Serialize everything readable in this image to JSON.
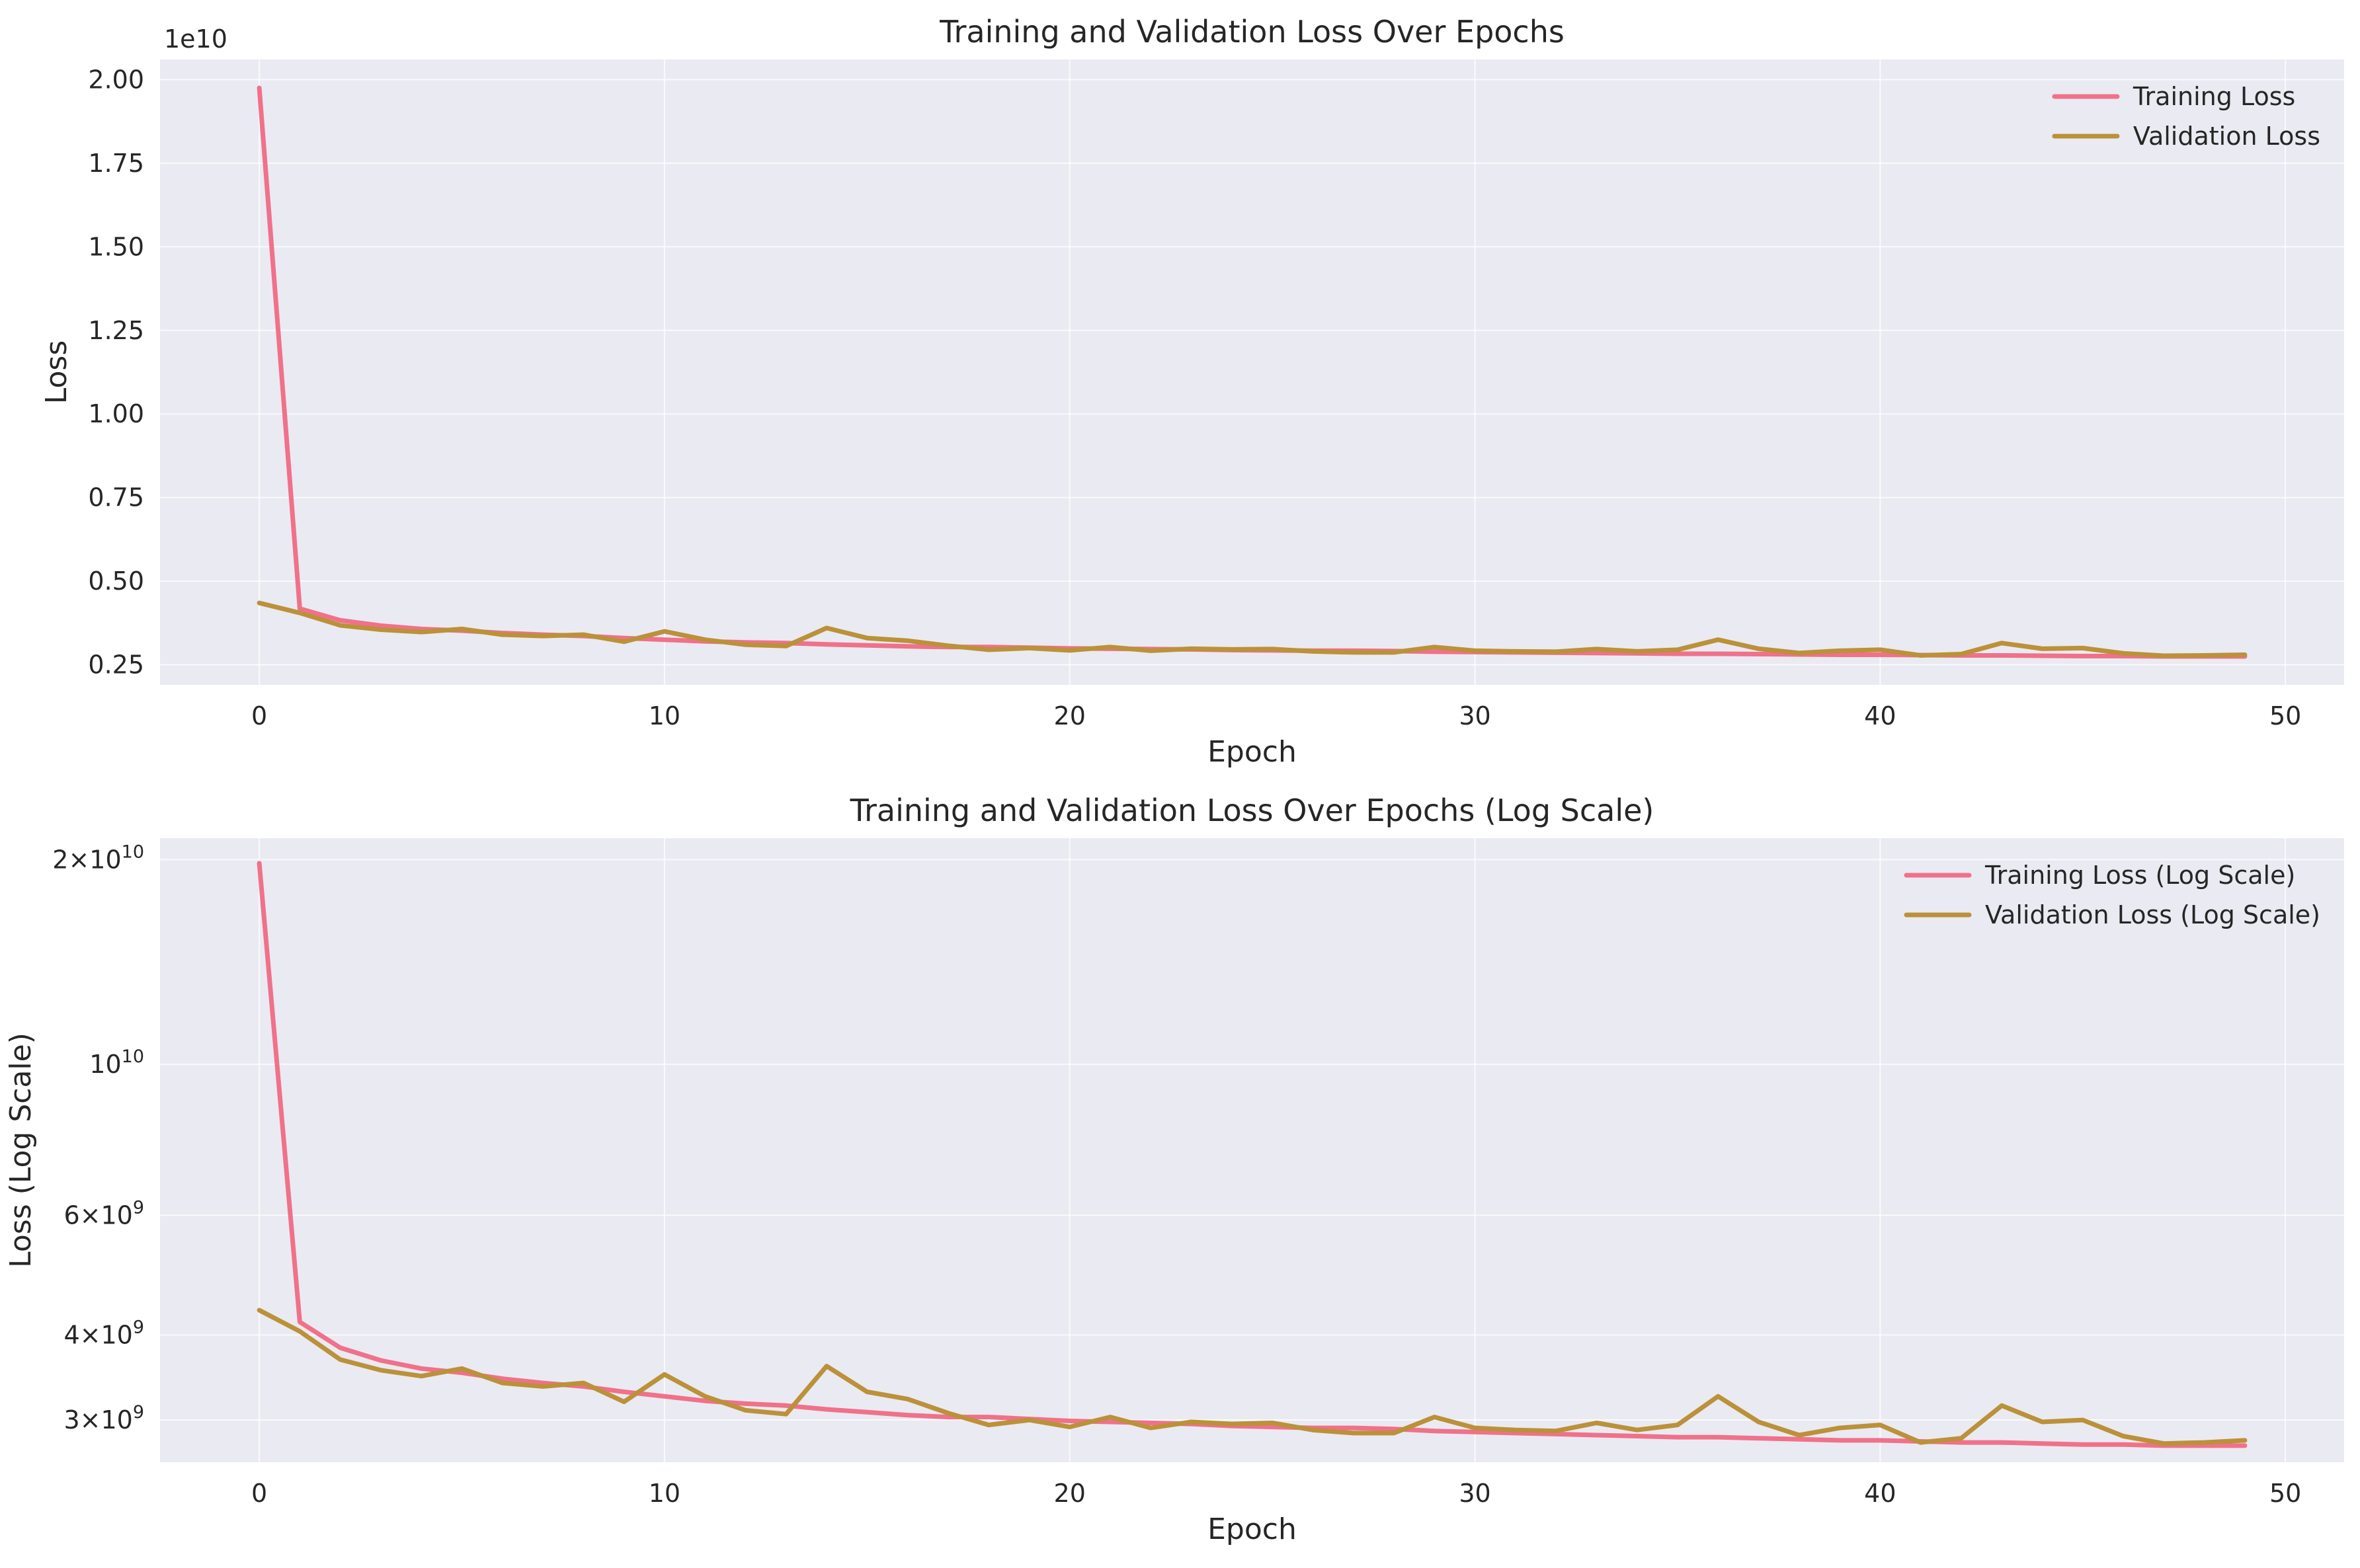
{
  "chart_data": [
    {
      "type": "line",
      "title": "Training and Validation Loss Over Epochs",
      "xlabel": "Epoch",
      "ylabel": "Loss",
      "yscale": "linear",
      "offset_text": "1e10",
      "xlim": [
        -2.45,
        51.45
      ],
      "ylim": [
        0.19,
        2.06
      ],
      "x_ticks": [
        0,
        10,
        20,
        30,
        40,
        50
      ],
      "x_tick_labels": [
        "0",
        "10",
        "20",
        "30",
        "40",
        "50"
      ],
      "y_ticks": [
        0.25,
        0.5,
        0.75,
        1.0,
        1.25,
        1.5,
        1.75,
        2.0
      ],
      "y_tick_labels": [
        "0.25",
        "0.50",
        "0.75",
        "1.00",
        "1.25",
        "1.50",
        "1.75",
        "2.00"
      ],
      "grid": true,
      "legend_position": "top-right",
      "x": [
        0,
        1,
        2,
        3,
        4,
        5,
        6,
        7,
        8,
        9,
        10,
        11,
        12,
        13,
        14,
        15,
        16,
        17,
        18,
        19,
        20,
        21,
        22,
        23,
        24,
        25,
        26,
        27,
        28,
        29,
        30,
        31,
        32,
        33,
        34,
        35,
        36,
        37,
        38,
        39,
        40,
        41,
        42,
        43,
        44,
        45,
        46,
        47,
        48,
        49
      ],
      "series": [
        {
          "name": "Training Loss",
          "color": "#f0718a",
          "values": [
            1.975,
            0.418,
            0.383,
            0.367,
            0.357,
            0.352,
            0.345,
            0.34,
            0.336,
            0.33,
            0.325,
            0.32,
            0.317,
            0.315,
            0.311,
            0.308,
            0.305,
            0.303,
            0.303,
            0.301,
            0.299,
            0.298,
            0.297,
            0.296,
            0.294,
            0.293,
            0.292,
            0.292,
            0.291,
            0.289,
            0.288,
            0.287,
            0.286,
            0.285,
            0.284,
            0.283,
            0.283,
            0.282,
            0.281,
            0.28,
            0.28,
            0.279,
            0.278,
            0.278,
            0.277,
            0.276,
            0.276,
            0.275,
            0.275,
            0.275
          ]
        },
        {
          "name": "Validation Loss",
          "color": "#bb9139",
          "values": [
            0.435,
            0.405,
            0.368,
            0.355,
            0.348,
            0.357,
            0.34,
            0.336,
            0.34,
            0.319,
            0.35,
            0.325,
            0.31,
            0.306,
            0.36,
            0.33,
            0.322,
            0.307,
            0.295,
            0.3,
            0.293,
            0.303,
            0.292,
            0.298,
            0.296,
            0.297,
            0.29,
            0.287,
            0.287,
            0.303,
            0.292,
            0.29,
            0.289,
            0.297,
            0.29,
            0.295,
            0.325,
            0.298,
            0.285,
            0.292,
            0.295,
            0.278,
            0.282,
            0.315,
            0.298,
            0.3,
            0.284,
            0.277,
            0.278,
            0.28
          ]
        }
      ]
    },
    {
      "type": "line",
      "title": "Training and Validation Loss Over Epochs (Log Scale)",
      "xlabel": "Epoch",
      "ylabel": "Loss (Log Scale)",
      "yscale": "log",
      "xlim": [
        -2.45,
        51.45
      ],
      "ylim": [
        2600000000.0,
        21500000000.0
      ],
      "x_ticks": [
        0,
        10,
        20,
        30,
        40,
        50
      ],
      "x_tick_labels": [
        "0",
        "10",
        "20",
        "30",
        "40",
        "50"
      ],
      "y_ticks": [
        3000000000.0,
        4000000000.0,
        6000000000.0,
        10000000000.0,
        20000000000.0
      ],
      "y_tick_labels": [
        {
          "mantissa": "3",
          "base": "10",
          "exp": "9"
        },
        {
          "mantissa": "4",
          "base": "10",
          "exp": "9"
        },
        {
          "mantissa": "6",
          "base": "10",
          "exp": "9"
        },
        {
          "mantissa": "",
          "base": "10",
          "exp": "10"
        },
        {
          "mantissa": "2",
          "base": "10",
          "exp": "10"
        }
      ],
      "grid": true,
      "legend_position": "top-right",
      "x": [
        0,
        1,
        2,
        3,
        4,
        5,
        6,
        7,
        8,
        9,
        10,
        11,
        12,
        13,
        14,
        15,
        16,
        17,
        18,
        19,
        20,
        21,
        22,
        23,
        24,
        25,
        26,
        27,
        28,
        29,
        30,
        31,
        32,
        33,
        34,
        35,
        36,
        37,
        38,
        39,
        40,
        41,
        42,
        43,
        44,
        45,
        46,
        47,
        48,
        49
      ],
      "series": [
        {
          "name": "Training Loss (Log Scale)",
          "color": "#f0718a",
          "values": [
            19750000000.0,
            4180000000.0,
            3830000000.0,
            3670000000.0,
            3570000000.0,
            3520000000.0,
            3450000000.0,
            3400000000.0,
            3360000000.0,
            3300000000.0,
            3250000000.0,
            3200000000.0,
            3170000000.0,
            3150000000.0,
            3110000000.0,
            3080000000.0,
            3050000000.0,
            3030000000.0,
            3030000000.0,
            3010000000.0,
            2990000000.0,
            2980000000.0,
            2970000000.0,
            2960000000.0,
            2940000000.0,
            2930000000.0,
            2920000000.0,
            2920000000.0,
            2910000000.0,
            2890000000.0,
            2880000000.0,
            2870000000.0,
            2860000000.0,
            2850000000.0,
            2840000000.0,
            2830000000.0,
            2830000000.0,
            2820000000.0,
            2810000000.0,
            2800000000.0,
            2800000000.0,
            2790000000.0,
            2780000000.0,
            2780000000.0,
            2770000000.0,
            2760000000.0,
            2760000000.0,
            2750000000.0,
            2750000000.0,
            2750000000.0
          ]
        },
        {
          "name": "Validation Loss (Log Scale)",
          "color": "#bb9139",
          "values": [
            4350000000.0,
            4050000000.0,
            3680000000.0,
            3550000000.0,
            3480000000.0,
            3570000000.0,
            3400000000.0,
            3360000000.0,
            3400000000.0,
            3190000000.0,
            3500000000.0,
            3250000000.0,
            3100000000.0,
            3060000000.0,
            3600000000.0,
            3300000000.0,
            3220000000.0,
            3070000000.0,
            2950000000.0,
            3000000000.0,
            2930000000.0,
            3030000000.0,
            2920000000.0,
            2980000000.0,
            2960000000.0,
            2970000000.0,
            2900000000.0,
            2870000000.0,
            2870000000.0,
            3030000000.0,
            2920000000.0,
            2900000000.0,
            2890000000.0,
            2970000000.0,
            2900000000.0,
            2950000000.0,
            3250000000.0,
            2980000000.0,
            2850000000.0,
            2920000000.0,
            2950000000.0,
            2780000000.0,
            2820000000.0,
            3150000000.0,
            2980000000.0,
            3000000000.0,
            2840000000.0,
            2770000000.0,
            2780000000.0,
            2800000000.0
          ]
        }
      ]
    }
  ]
}
